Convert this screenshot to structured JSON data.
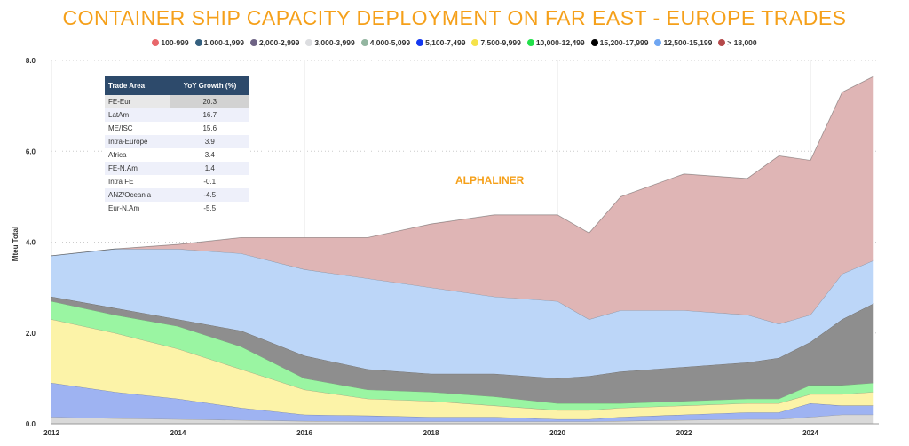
{
  "chart_data": {
    "type": "area",
    "stacked": true,
    "title": "CONTAINER SHIP CAPACITY DEPLOYMENT ON FAR EAST - EUROPE TRADES",
    "ylabel": "Mteu Total",
    "xlabel": "",
    "ylim": [
      0,
      8
    ],
    "xlim": [
      2012,
      2025.1
    ],
    "yticks": [
      "0.0",
      "2.0",
      "4.0",
      "6.0",
      "8.0"
    ],
    "xticks": [
      "2012",
      "2014",
      "2016",
      "2018",
      "2020",
      "2022",
      "2024"
    ],
    "grid": true,
    "legend_position": "top",
    "legend": [
      {
        "name": "100-999",
        "color": "#e8676b"
      },
      {
        "name": "1,000-1,999",
        "color": "#35607f"
      },
      {
        "name": "2,000-2,999",
        "color": "#6e6385"
      },
      {
        "name": "3,000-3,999",
        "color": "#dcdde0"
      },
      {
        "name": "4,000-5,099",
        "color": "#93b5a0"
      },
      {
        "name": "5,100-7,499",
        "color": "#1438f0"
      },
      {
        "name": "7,500-9,999",
        "color": "#f5e24a"
      },
      {
        "name": "10,000-12,499",
        "color": "#22e04a"
      },
      {
        "name": "15,200-17,999",
        "color": "#000000"
      },
      {
        "name": "12,500-15,199",
        "color": "#6fa6f2"
      },
      {
        "name": "> 18,000",
        "color": "#b5494a"
      }
    ],
    "x": [
      2012,
      2013,
      2014,
      2015,
      2016,
      2017,
      2018,
      2019,
      2020,
      2020.5,
      2021,
      2022,
      2023,
      2023.5,
      2024,
      2024.5,
      2025
    ],
    "series": [
      {
        "name": "3,000-3,999",
        "fill": "#d9d9d9",
        "values": [
          0.15,
          0.12,
          0.1,
          0.08,
          0.06,
          0.05,
          0.05,
          0.05,
          0.05,
          0.05,
          0.06,
          0.08,
          0.1,
          0.1,
          0.15,
          0.2,
          0.2
        ]
      },
      {
        "name": "5,100-7,499",
        "fill": "#9eb3f2",
        "values": [
          0.75,
          0.58,
          0.45,
          0.27,
          0.14,
          0.13,
          0.1,
          0.1,
          0.05,
          0.05,
          0.09,
          0.12,
          0.15,
          0.15,
          0.3,
          0.2,
          0.2
        ]
      },
      {
        "name": "7,500-9,999",
        "fill": "#fcf3a8",
        "values": [
          1.4,
          1.3,
          1.1,
          0.85,
          0.55,
          0.37,
          0.35,
          0.25,
          0.2,
          0.2,
          0.2,
          0.2,
          0.2,
          0.2,
          0.2,
          0.25,
          0.3
        ]
      },
      {
        "name": "10,000-12,499",
        "fill": "#9af5a2",
        "values": [
          0.4,
          0.4,
          0.5,
          0.5,
          0.25,
          0.2,
          0.2,
          0.2,
          0.15,
          0.15,
          0.1,
          0.1,
          0.1,
          0.1,
          0.2,
          0.2,
          0.2
        ]
      },
      {
        "name": "15,200-17,999",
        "fill": "#8e8e8e",
        "values": [
          0.1,
          0.15,
          0.15,
          0.35,
          0.5,
          0.45,
          0.4,
          0.5,
          0.55,
          0.6,
          0.7,
          0.75,
          0.8,
          0.9,
          0.95,
          1.45,
          1.75
        ]
      },
      {
        "name": "12,500-15,199",
        "fill": "#bcd6f8",
        "values": [
          0.9,
          1.3,
          1.55,
          1.7,
          1.9,
          2.0,
          1.9,
          1.7,
          1.7,
          1.25,
          1.35,
          1.25,
          1.05,
          0.75,
          0.6,
          1.0,
          0.95
        ]
      },
      {
        "name": "> 18,000",
        "fill": "#dfb5b5",
        "values": [
          0,
          0,
          0.1,
          0.35,
          0.7,
          0.9,
          1.4,
          1.8,
          1.9,
          1.9,
          2.5,
          3.0,
          3.0,
          3.7,
          3.4,
          4.0,
          4.05
        ]
      }
    ]
  },
  "table": {
    "headers": [
      "Trade Area",
      "YoY Growth (%)"
    ],
    "rows": [
      [
        "FE-Eur",
        "20.3"
      ],
      [
        "LatAm",
        "16.7"
      ],
      [
        "ME/ISC",
        "15.6"
      ],
      [
        "Intra-Europe",
        "3.9"
      ],
      [
        "Africa",
        "3.4"
      ],
      [
        "FE-N.Am",
        "1.4"
      ],
      [
        "Intra FE",
        "-0.1"
      ],
      [
        "ANZ/Oceania",
        "-4.5"
      ],
      [
        "Eur-N.Am",
        "-5.5"
      ]
    ]
  },
  "watermark": "ALPHALINER"
}
